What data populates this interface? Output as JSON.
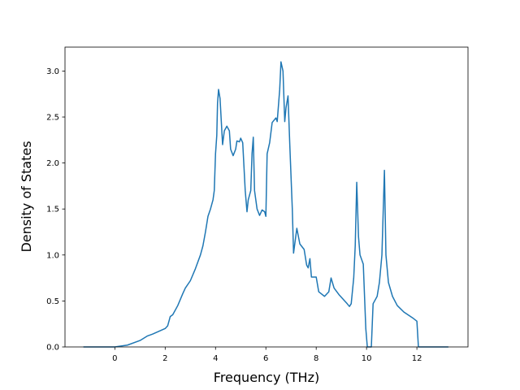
{
  "chart_data": {
    "type": "line",
    "xlabel": "Frequency (THz)",
    "ylabel": "Density of States",
    "xlim": [
      -1.98,
      14.03
    ],
    "ylim": [
      0,
      3.26
    ],
    "xticks": [
      0,
      2,
      4,
      6,
      8,
      10,
      12
    ],
    "yticks": [
      {
        "value": 0,
        "label": "0.0"
      },
      0.5,
      {
        "value": 1,
        "label": "1.0"
      },
      1.5,
      {
        "value": 2,
        "label": "2.0"
      },
      2.5,
      {
        "value": 3,
        "label": "3.0"
      }
    ],
    "series": [
      {
        "color": "#1f77b4",
        "x": [
          -1.25,
          0,
          0.5,
          1,
          1.3,
          1.5,
          2,
          2.1,
          2.2,
          2.3,
          2.5,
          2.7,
          2.8,
          3,
          3.2,
          3.4,
          3.5,
          3.6,
          3.7,
          3.8,
          3.9,
          3.95,
          4.0,
          4.05,
          4.08,
          4.12,
          4.18,
          4.28,
          4.35,
          4.45,
          4.55,
          4.6,
          4.7,
          4.8,
          4.85,
          4.95,
          5.0,
          5.08,
          5.18,
          5.25,
          5.3,
          5.4,
          5.45,
          5.5,
          5.55,
          5.65,
          5.75,
          5.85,
          5.95,
          6.0,
          6.05,
          6.15,
          6.25,
          6.4,
          6.45,
          6.55,
          6.6,
          6.68,
          6.75,
          6.8,
          6.88,
          6.95,
          7.05,
          7.1,
          7.23,
          7.35,
          7.52,
          7.62,
          7.68,
          7.75,
          7.81,
          8.0,
          8.1,
          8.33,
          8.5,
          8.59,
          8.71,
          8.9,
          9.23,
          9.32,
          9.39,
          9.49,
          9.55,
          9.61,
          9.68,
          9.74,
          9.87,
          9.97,
          10.03,
          10.19,
          10.26,
          10.42,
          10.51,
          10.61,
          10.71,
          10.77,
          10.87,
          11.03,
          11.22,
          11.48,
          11.86,
          12.0,
          12.06,
          13.25
        ],
        "values": [
          0,
          0,
          0.02,
          0.07,
          0.12,
          0.14,
          0.2,
          0.23,
          0.33,
          0.35,
          0.45,
          0.58,
          0.64,
          0.72,
          0.85,
          1.0,
          1.1,
          1.25,
          1.42,
          1.5,
          1.6,
          1.7,
          2.1,
          2.3,
          2.65,
          2.8,
          2.7,
          2.2,
          2.35,
          2.4,
          2.35,
          2.15,
          2.08,
          2.15,
          2.24,
          2.23,
          2.27,
          2.22,
          1.7,
          1.47,
          1.6,
          1.7,
          2.1,
          2.28,
          1.7,
          1.5,
          1.43,
          1.49,
          1.47,
          1.42,
          2.1,
          2.22,
          2.44,
          2.49,
          2.45,
          2.8,
          3.1,
          3.0,
          2.45,
          2.6,
          2.73,
          2.2,
          1.5,
          1.02,
          1.29,
          1.12,
          1.06,
          0.89,
          0.86,
          0.96,
          0.76,
          0.76,
          0.6,
          0.55,
          0.6,
          0.75,
          0.64,
          0.57,
          0.47,
          0.44,
          0.47,
          0.75,
          1.1,
          1.79,
          1.2,
          1.0,
          0.9,
          0.2,
          0,
          0,
          0.47,
          0.55,
          0.7,
          1.0,
          1.92,
          1.0,
          0.7,
          0.55,
          0.45,
          0.38,
          0.31,
          0.28,
          0,
          0
        ]
      }
    ]
  }
}
